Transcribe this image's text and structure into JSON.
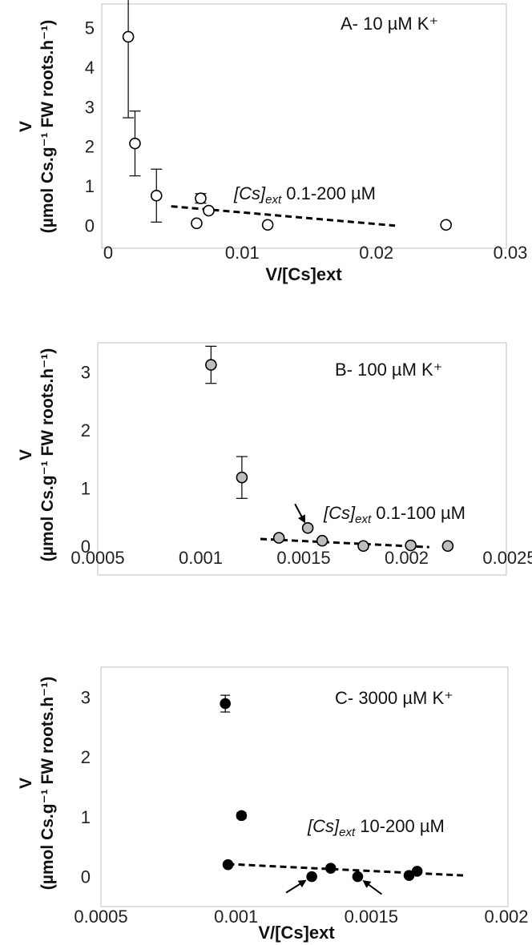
{
  "figure": {
    "panels": [
      {
        "title": "A- 10 µM K⁺",
        "ylabel_main": "V",
        "ylabel_sub": "(µmol Cs.g⁻¹ FW roots.h⁻¹)",
        "xlabel": "V/[Cs]ext",
        "range_label_italic": "[Cs]",
        "range_label_sub": "ext",
        "range_label_text": " 0.1-200 µM",
        "xticks": [
          "0",
          "0.01",
          "0.02",
          "0.03"
        ],
        "yticks": [
          "0",
          "1",
          "2",
          "3",
          "4",
          "5"
        ]
      },
      {
        "title": "B- 100 µM K⁺",
        "ylabel_main": "V",
        "ylabel_sub": "(µmol Cs.g⁻¹ FW roots.h⁻¹)",
        "xlabel": "",
        "range_label_italic": "[Cs]",
        "range_label_sub": "ext",
        "range_label_text": " 0.1-100 µM",
        "xticks": [
          "0.0005",
          "0.001",
          "0.0015",
          "0.002",
          "0.0025"
        ],
        "yticks": [
          "0",
          "1",
          "2",
          "3"
        ]
      },
      {
        "title": "C- 3000 µM K⁺",
        "ylabel_main": "V",
        "ylabel_sub": "(µmol Cs.g⁻¹ FW roots.h⁻¹)",
        "xlabel": "V/[Cs]ext",
        "range_label_italic": "[Cs]",
        "range_label_sub": "ext",
        "range_label_text": " 10-200 µM",
        "xticks": [
          "0.0005",
          "0.001",
          "0.0015",
          "0.002"
        ],
        "yticks": [
          "0",
          "1",
          "2",
          "3"
        ]
      }
    ]
  },
  "chart_data": [
    {
      "type": "scatter",
      "title": "A- 10 µM K⁺",
      "xlabel": "V/[Cs]ext",
      "ylabel": "V (µmol Cs.g⁻¹ FW roots.h⁻¹)",
      "xlim": [
        0,
        0.03
      ],
      "ylim": [
        -0.4,
        5.6
      ],
      "marker": {
        "fill": "#ffffff",
        "stroke": "#000000"
      },
      "points": [
        {
          "x": 0.0015,
          "y": 4.77,
          "err": 2.05
        },
        {
          "x": 0.002,
          "y": 2.07,
          "err": 0.82
        },
        {
          "x": 0.0036,
          "y": 0.75,
          "err": 0.67
        },
        {
          "x": 0.0069,
          "y": 0.68,
          "err": 0.12
        },
        {
          "x": 0.0075,
          "y": 0.37
        },
        {
          "x": 0.0066,
          "y": 0.05
        },
        {
          "x": 0.0119,
          "y": 0.01
        },
        {
          "x": 0.0252,
          "y": 0.01
        }
      ],
      "trendline": {
        "x": [
          0.0047,
          0.0214
        ],
        "y": [
          0.48,
          -0.01
        ],
        "style": "dashed"
      },
      "annotation": "[Cs]ext 0.1-200 µM",
      "arrows_at": []
    },
    {
      "type": "scatter",
      "title": "B- 100 µM K⁺",
      "xlabel": "",
      "ylabel": "V (µmol Cs.g⁻¹ FW roots.h⁻¹)",
      "xlim": [
        0.0005,
        0.0025
      ],
      "ylim": [
        -0.5,
        3.5
      ],
      "marker": {
        "fill": "#bdbdbd",
        "stroke": "#000000"
      },
      "points": [
        {
          "x": 0.00105,
          "y": 3.12,
          "err": 0.32
        },
        {
          "x": 0.0012,
          "y": 1.18,
          "err": 0.36
        },
        {
          "x": 0.00138,
          "y": 0.14
        },
        {
          "x": 0.00152,
          "y": 0.31
        },
        {
          "x": 0.00159,
          "y": 0.09
        },
        {
          "x": 0.00179,
          "y": 0.0
        },
        {
          "x": 0.00202,
          "y": 0.01
        },
        {
          "x": 0.0022,
          "y": 0.0
        }
      ],
      "trendline": {
        "x": [
          0.00129,
          0.00211
        ],
        "y": [
          0.12,
          -0.02
        ],
        "style": "dashed"
      },
      "annotation": "[Cs]ext 0.1-100 µM",
      "arrows_at": [
        {
          "x": 0.00152,
          "y": 0.31
        }
      ]
    },
    {
      "type": "scatter",
      "title": "C- 3000 µM K⁺",
      "xlabel": "V/[Cs]ext",
      "ylabel": "V (µmol Cs.g⁻¹ FW roots.h⁻¹)",
      "xlim": [
        0.0005,
        0.002
      ],
      "ylim": [
        -0.5,
        3.5
      ],
      "marker": {
        "fill": "#000000",
        "stroke": "#000000"
      },
      "points": [
        {
          "x": 0.00096,
          "y": 2.89,
          "err": 0.14
        },
        {
          "x": 0.00102,
          "y": 1.02,
          "err": 0.05
        },
        {
          "x": 0.00097,
          "y": 0.2
        },
        {
          "x": 0.00128,
          "y": 0.0
        },
        {
          "x": 0.00135,
          "y": 0.14
        },
        {
          "x": 0.00145,
          "y": 0.0
        },
        {
          "x": 0.00164,
          "y": 0.02
        },
        {
          "x": 0.00167,
          "y": 0.09
        }
      ],
      "trendline": {
        "x": [
          0.00097,
          0.00184
        ],
        "y": [
          0.21,
          0.02
        ],
        "style": "dashed"
      },
      "annotation": "[Cs]ext 10-200 µM",
      "arrows_at": [
        {
          "x": 0.00128,
          "y": 0.0
        },
        {
          "x": 0.00145,
          "y": 0.0
        }
      ]
    }
  ]
}
